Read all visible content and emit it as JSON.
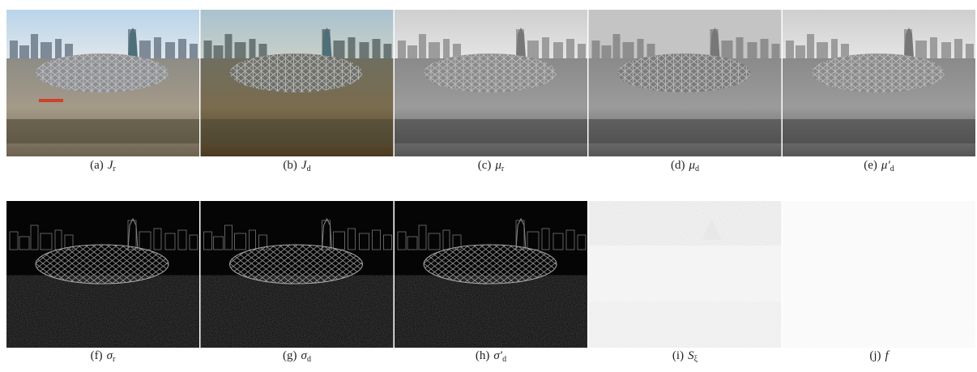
{
  "figure": {
    "panels": [
      {
        "label": "(a)",
        "symbol": "J",
        "sub": "r"
      },
      {
        "label": "(b)",
        "symbol": "J",
        "sub": "d"
      },
      {
        "label": "(c)",
        "symbol": "μ",
        "sub": "r"
      },
      {
        "label": "(d)",
        "symbol": "μ",
        "sub": "d"
      },
      {
        "label": "(e)",
        "symbol": "μ′",
        "sub": "d"
      },
      {
        "label": "(f)",
        "symbol": "σ",
        "sub": "r"
      },
      {
        "label": "(g)",
        "symbol": "σ",
        "sub": "d"
      },
      {
        "label": "(h)",
        "symbol": "σ′",
        "sub": "d"
      },
      {
        "label": "(i)",
        "symbol": "S",
        "sub": "ξ"
      },
      {
        "label": "(j)",
        "symbol": "f"
      }
    ]
  }
}
